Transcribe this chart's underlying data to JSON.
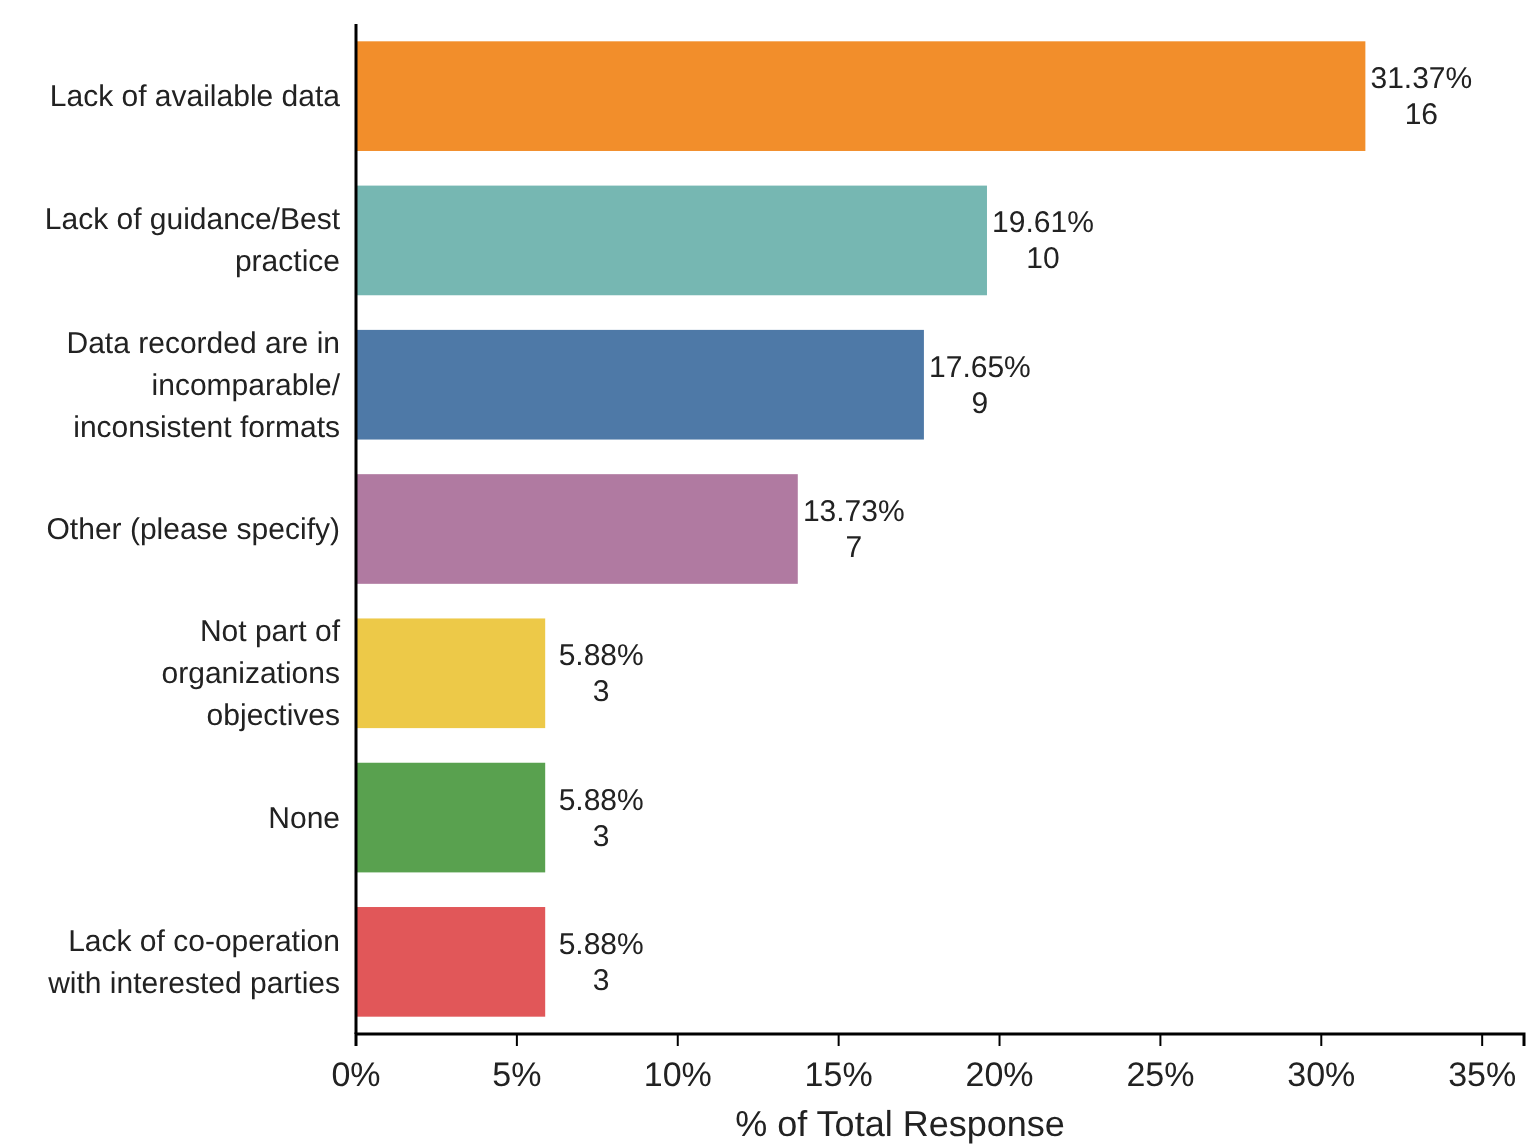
{
  "chart_data": {
    "type": "bar",
    "orientation": "horizontal",
    "xlabel": "% of Total Response",
    "categories": [
      "Lack of available data",
      "Lack of guidance/Best practice",
      "Data recorded are in incomparable/ inconsistent formats",
      "Other (please specify)",
      "Not part of organizations objectives",
      "None",
      "Lack of co-operation with interested parties"
    ],
    "values": [
      31.37,
      19.61,
      17.65,
      13.73,
      5.88,
      5.88,
      5.88
    ],
    "colors": [
      "#f28e2b",
      "#76b7b2",
      "#4e79a7",
      "#b07aa1",
      "#edc948",
      "#59a14f",
      "#e15759"
    ],
    "value_labels": [
      "31.37%\n16",
      "19.61%\n10",
      "17.65%\n9",
      "13.73%\n7",
      "5.88%\n3",
      "5.88%\n3",
      "5.88%\n3"
    ],
    "xlim": [
      0,
      36.3
    ],
    "xticks": [
      {
        "value": 0,
        "label": "0%"
      },
      {
        "value": 5,
        "label": "5%"
      },
      {
        "value": 10,
        "label": "10%"
      },
      {
        "value": 15,
        "label": "15%"
      },
      {
        "value": 20,
        "label": "20%"
      },
      {
        "value": 25,
        "label": "25%"
      },
      {
        "value": 30,
        "label": "30%"
      },
      {
        "value": 35,
        "label": "35%"
      }
    ],
    "grid": false
  }
}
